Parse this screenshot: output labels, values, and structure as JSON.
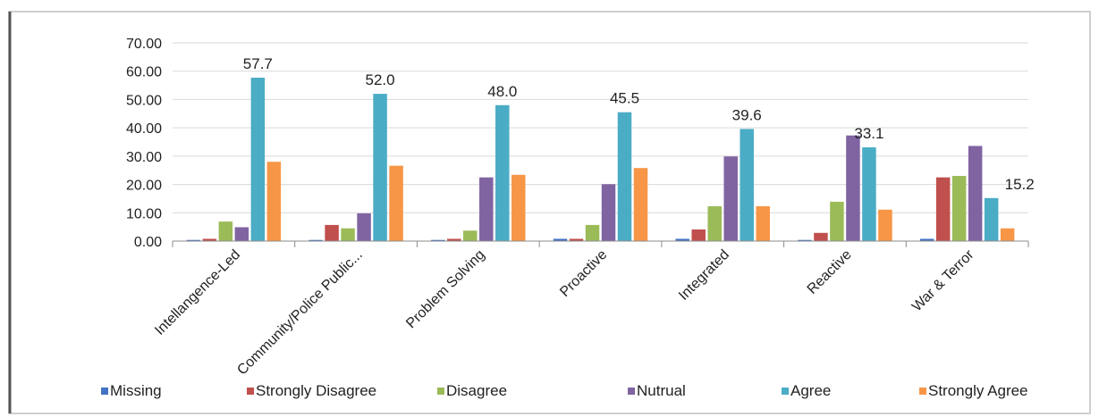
{
  "chart_data": {
    "type": "bar",
    "title": "",
    "xlabel": "",
    "ylabel": "",
    "ylim": [
      0,
      70
    ],
    "yticks": [
      "0.00",
      "10.00",
      "20.00",
      "30.00",
      "40.00",
      "50.00",
      "60.00",
      "70.00"
    ],
    "grid": true,
    "legend_position": "bottom",
    "categories": [
      "Intellangence-Led",
      "Community/Police Public...",
      "Problem Solving",
      "Proactive",
      "Integrated",
      "Reactive",
      "War & Terror"
    ],
    "series": [
      {
        "name": "Missing",
        "color": "#4472c4",
        "values": [
          0.4,
          0.4,
          0.4,
          0.8,
          0.8,
          0.4,
          0.8
        ]
      },
      {
        "name": "Strongly Disagree",
        "color": "#c0504d",
        "values": [
          0.8,
          5.7,
          0.8,
          0.8,
          4.1,
          2.9,
          22.5
        ]
      },
      {
        "name": "Disagree",
        "color": "#9bbb59",
        "values": [
          6.9,
          4.5,
          3.7,
          5.7,
          12.3,
          13.9,
          23.0
        ]
      },
      {
        "name": "Nutrual",
        "color": "#8064a2",
        "values": [
          4.9,
          9.8,
          22.5,
          20.1,
          29.9,
          37.3,
          33.6
        ]
      },
      {
        "name": "Agree",
        "color": "#4bacc6",
        "values": [
          57.7,
          52.0,
          48.0,
          45.5,
          39.6,
          33.1,
          15.2
        ]
      },
      {
        "name": "Strongly Agree",
        "color": "#f79646",
        "values": [
          28.0,
          26.6,
          23.4,
          25.8,
          12.3,
          11.1,
          4.5
        ]
      }
    ],
    "data_labels": [
      "57.7",
      "52.0",
      "48.0",
      "45.5",
      "39.6",
      "33.1",
      "15.2"
    ]
  }
}
